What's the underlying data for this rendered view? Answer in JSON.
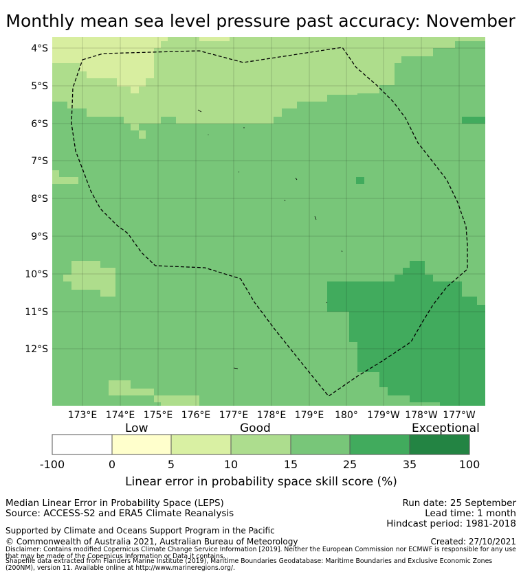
{
  "title": "Monthly mean sea level pressure past accuracy: November",
  "map": {
    "lat_labels": [
      "4°S",
      "5°S",
      "6°S",
      "7°S",
      "8°S",
      "9°S",
      "10°S",
      "11°S",
      "12°S"
    ],
    "lon_labels": [
      "173°E",
      "174°E",
      "175°E",
      "176°E",
      "177°E",
      "178°E",
      "179°E",
      "180°",
      "179°W",
      "178°W",
      "177°W"
    ],
    "colors": {
      "c1": "#d8eea0",
      "c2": "#aedd8c",
      "c3": "#78c679",
      "c4": "#41ab5d",
      "coast": "#000000",
      "boundary": "#000000"
    }
  },
  "colorbar": {
    "categories": [
      "Low",
      "Good",
      "Exceptional"
    ],
    "ticks": [
      "-100",
      "0",
      "5",
      "10",
      "15",
      "25",
      "35",
      "100"
    ],
    "colors": [
      "#ffffff",
      "#ffffcc",
      "#d9f0a3",
      "#addd8e",
      "#78c679",
      "#41ab5d",
      "#238443"
    ],
    "label": "Linear error in probability space skill score (%)"
  },
  "footer": {
    "method": "Median Linear Error in Probability Space (LEPS)",
    "source": "Source: ACCESS-S2 and ERA5 Climate Reanalysis",
    "run_date": "Run date: 25 September",
    "lead_time": "Lead time: 1 month",
    "hindcast": "Hindcast period: 1981-2018",
    "support": "Supported by Climate and Oceans Support Program in the Pacific",
    "copyright": "© Commonwealth of Australia 2021, Australian Bureau of Meteorology",
    "created": "Created: 27/10/2021",
    "disclaimer": "Disclaimer: Contains modified Copernicus Climate Change Service Information [2019]. Neither the European Commission nor ECMWF is responsible for any use that may be made of the Copernicus Information or Data it contains.",
    "shapefile": "Shapefile data extracted from Flanders Marine Institute (2019), Maritime Boundaries Geodatabase: Maritime Boundaries and Exclusive Economic Zones (200NM), version 11. Available online at http://www.marineregions.org/."
  }
}
